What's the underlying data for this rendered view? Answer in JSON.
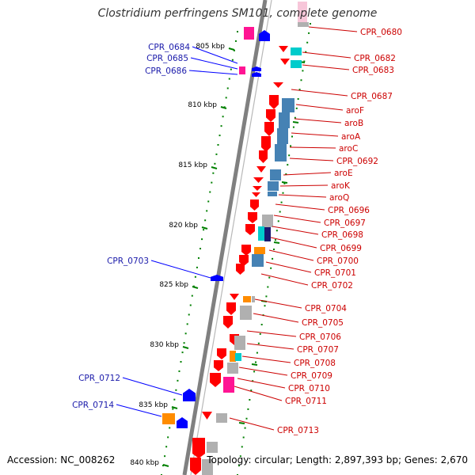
{
  "title": "Clostridium perfringens SM101, complete genome",
  "footer": {
    "accession": "Accession: NC_008262",
    "topology": "Topology: circular; Length: 2,897,393 bp; Genes: 2,670"
  },
  "ruler_labels": [
    "805 kbp",
    "810 kbp",
    "815 kbp",
    "820 kbp",
    "825 kbp",
    "830 kbp",
    "835 kbp",
    "840 kbp"
  ],
  "left_labels": [
    "CPR_0684",
    "CPR_0685",
    "CPR_0686",
    "CPR_0703",
    "CPR_0712",
    "CPR_0714"
  ],
  "right_labels": [
    "CPR_0680",
    "CPR_0682",
    "CPR_0683",
    "CPR_0687",
    "aroF",
    "aroB",
    "aroA",
    "aroC",
    "CPR_0692",
    "aroE",
    "aroK",
    "aroQ",
    "CPR_0696",
    "CPR_0697",
    "CPR_0698",
    "CPR_0699",
    "CPR_0700",
    "CPR_0701",
    "CPR_0702",
    "CPR_0704",
    "CPR_0705",
    "CPR_0706",
    "CPR_0707",
    "CPR_0708",
    "CPR_0709",
    "CPR_0710",
    "CPR_0711",
    "CPR_0713"
  ],
  "colors": {
    "left_label": "#1a1aaa",
    "right_label": "#cc0000",
    "forward_cds": "#ff0000",
    "reverse_cds": "#0000ff",
    "backbone": "#808080",
    "ruler": "#008000",
    "blue_feature": "#4682b4",
    "pink_feature": "#ff1493",
    "cyan_feature": "#00cccc",
    "gray_feature": "#b0b0b0",
    "orange_feature": "#ff8c00",
    "navy_feature": "#191970"
  }
}
